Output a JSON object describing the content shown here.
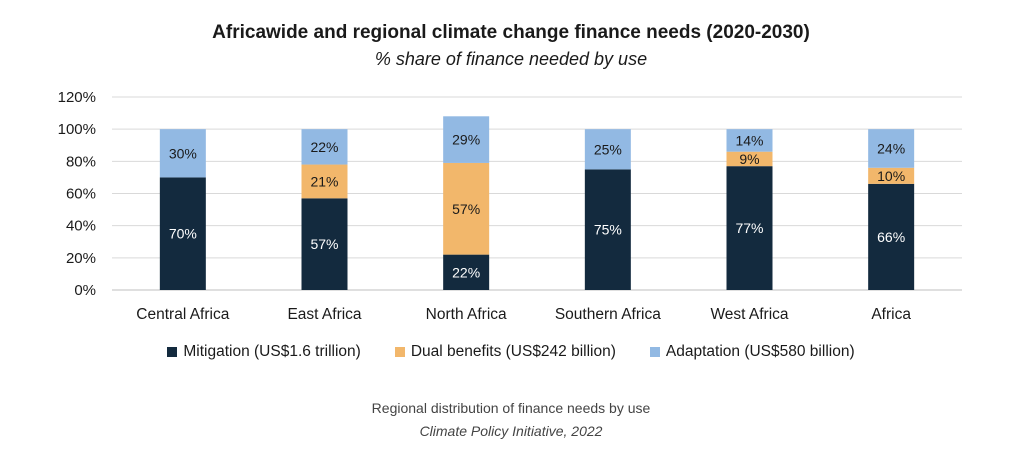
{
  "chart_data": {
    "type": "bar",
    "stacked": true,
    "title": "Africawide and regional climate change finance needs (2020-2030)",
    "subtitle": "% share of finance needed by use",
    "categories": [
      "Central Africa",
      "East Africa",
      "North Africa",
      "Southern Africa",
      "West Africa",
      "Africa"
    ],
    "series": [
      {
        "name": "Mitigation (US$1.6 trillion)",
        "color": "#132a3e",
        "values": [
          70,
          57,
          22,
          75,
          77,
          66
        ],
        "labels": [
          "70%",
          "57%",
          "22%",
          "75%",
          "77%",
          "66%"
        ]
      },
      {
        "name": "Dual benefits (US$242 billion)",
        "color": "#f2b76b",
        "values": [
          0,
          21,
          57,
          0,
          9,
          10
        ],
        "labels": [
          "",
          "21%",
          "57%",
          "",
          "9%",
          "10%"
        ]
      },
      {
        "name": "Adaptation (US$580 billion)",
        "color": "#92b9e3",
        "values": [
          30,
          22,
          29,
          25,
          14,
          24
        ],
        "labels": [
          "30%",
          "22%",
          "29%",
          "25%",
          "14%",
          "24%"
        ]
      }
    ],
    "ylim": [
      0,
      120
    ],
    "yticks": [
      "0%",
      "20%",
      "40%",
      "60%",
      "80%",
      "100%",
      "120%"
    ],
    "grid": true,
    "legend_position": "bottom"
  },
  "caption": "Regional distribution of finance needs by use",
  "source": "Climate Policy Initiative, 2022"
}
